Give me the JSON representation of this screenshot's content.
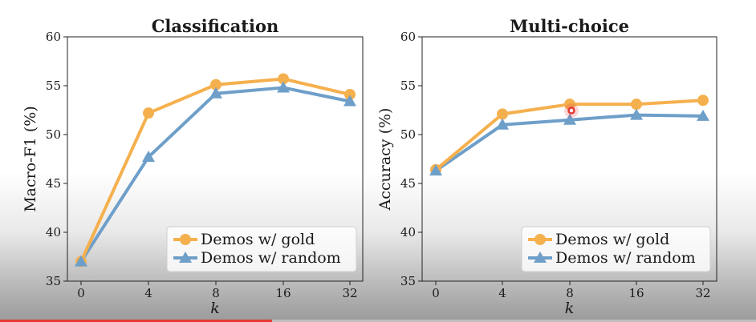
{
  "colors": {
    "gold": "#f5b04e",
    "random": "#6e9fc9",
    "cursor": "#e53935",
    "progress": "#e53935"
  },
  "video_progress": 0.36,
  "cursor_icon": "red-dot-cursor-icon",
  "chart_data": [
    {
      "type": "line",
      "title": "Classification",
      "xlabel": "k",
      "ylabel": "Macro-F1 (%)",
      "categories": [
        "0",
        "4",
        "8",
        "16",
        "32"
      ],
      "ylim": [
        35,
        60
      ],
      "yticks": [
        "35",
        "40",
        "45",
        "50",
        "55",
        "60"
      ],
      "grid": false,
      "legend_position": "bottom-right",
      "series": [
        {
          "name": "Demos w/ gold",
          "marker": "circle",
          "values": [
            37.0,
            52.2,
            55.1,
            55.7,
            54.1
          ]
        },
        {
          "name": "Demos w/ random",
          "marker": "triangle",
          "values": [
            37.0,
            47.7,
            54.2,
            54.8,
            53.4
          ]
        }
      ]
    },
    {
      "type": "line",
      "title": "Multi-choice",
      "xlabel": "k",
      "ylabel": "Accuracy (%)",
      "categories": [
        "0",
        "4",
        "8",
        "16",
        "32"
      ],
      "ylim": [
        35,
        60
      ],
      "yticks": [
        "35",
        "40",
        "45",
        "50",
        "55",
        "60"
      ],
      "grid": false,
      "legend_position": "bottom-right",
      "series": [
        {
          "name": "Demos w/ gold",
          "marker": "circle",
          "values": [
            46.4,
            52.1,
            53.1,
            53.1,
            53.5
          ]
        },
        {
          "name": "Demos w/ random",
          "marker": "triangle",
          "values": [
            46.3,
            51.0,
            51.5,
            52.0,
            51.9
          ]
        }
      ]
    }
  ]
}
